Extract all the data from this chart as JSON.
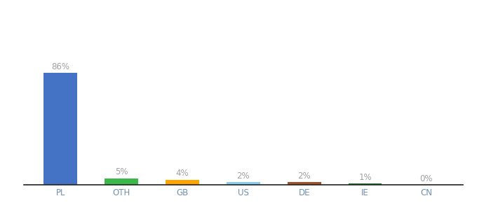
{
  "categories": [
    "PL",
    "OTH",
    "GB",
    "US",
    "DE",
    "IE",
    "CN"
  ],
  "values": [
    86,
    5,
    4,
    2,
    2,
    1,
    0
  ],
  "labels": [
    "86%",
    "5%",
    "4%",
    "2%",
    "2%",
    "1%",
    "0%"
  ],
  "bar_colors": [
    "#4472C4",
    "#3CB84A",
    "#FFA500",
    "#87CEEB",
    "#A0522D",
    "#2E7D32",
    "#C8C8C8"
  ],
  "ylim": [
    0,
    100
  ],
  "background_color": "#ffffff",
  "label_color": "#A0A0A0",
  "label_fontsize": 8.5,
  "axis_label_fontsize": 8.5,
  "axis_label_color": "#7090B0",
  "bar_width": 0.55
}
